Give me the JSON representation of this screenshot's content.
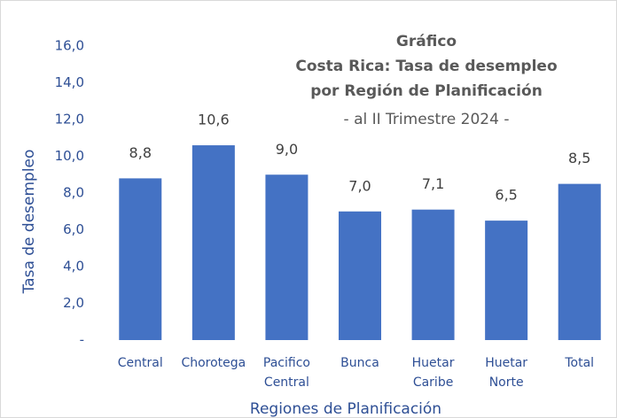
{
  "chart_data": {
    "type": "bar",
    "title": [
      "Gráfico",
      "Costa Rica: Tasa de desempleo",
      "por Región de Planificación"
    ],
    "subtitle": "- al II Trimestre 2024 -",
    "ylabel": "Tasa de desempleo",
    "xlabel": "Regiones de Planificación",
    "categories": [
      [
        "Central"
      ],
      [
        "Chorotega"
      ],
      [
        "Pacifico",
        "Central"
      ],
      [
        "Bunca"
      ],
      [
        "Huetar",
        "Caribe"
      ],
      [
        "Huetar",
        "Norte"
      ],
      [
        "Total"
      ]
    ],
    "values": [
      8.8,
      10.6,
      9.0,
      7.0,
      7.1,
      6.5,
      8.5
    ],
    "value_labels": [
      "8,8",
      "10,6",
      "9,0",
      "7,0",
      "7,1",
      "6,5",
      "8,5"
    ],
    "color": "#4472c4",
    "ylim": [
      0,
      16
    ],
    "yticks": [
      {
        "value": 0,
        "label": "-"
      },
      {
        "value": 2,
        "label": "2,0"
      },
      {
        "value": 4,
        "label": "4,0"
      },
      {
        "value": 6,
        "label": "6,0"
      },
      {
        "value": 8,
        "label": "8,0"
      },
      {
        "value": 10,
        "label": "10,0"
      },
      {
        "value": 12,
        "label": "12,0"
      },
      {
        "value": 14,
        "label": "14,0"
      },
      {
        "value": 16,
        "label": "16,0"
      }
    ],
    "grid": false
  }
}
